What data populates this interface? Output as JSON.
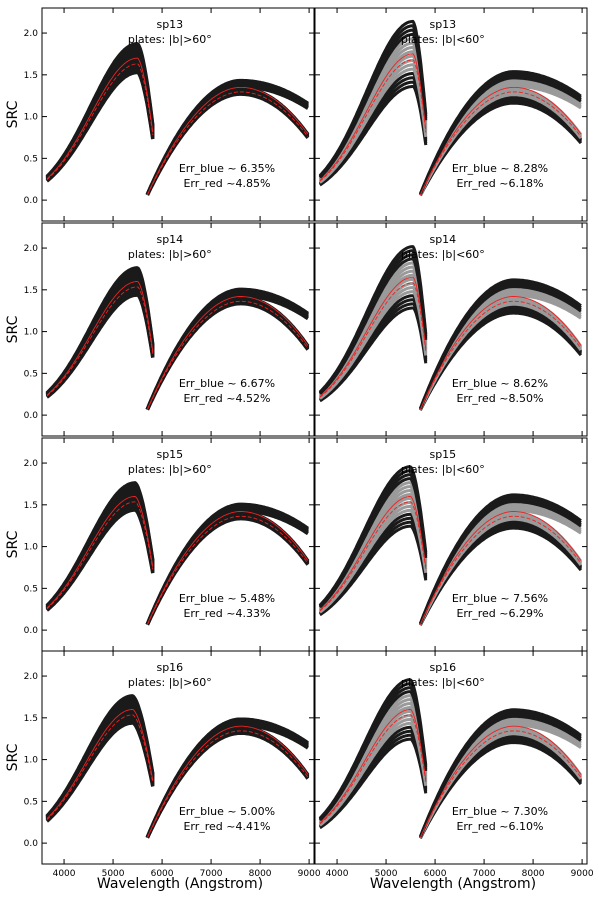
{
  "figure": {
    "ylabel": "SRC",
    "xlabel": "Wavelength (Angstrom)",
    "x_ticks": [
      "4000",
      "5000",
      "6000",
      "7000",
      "8000",
      "9000"
    ],
    "y_ticks": [
      "0.0",
      "0.5",
      "1.0",
      "1.5",
      "2.0"
    ]
  },
  "chart_data": [
    {
      "type": "line",
      "row": 0,
      "col": 0,
      "title": "sp13",
      "subtitle": "plates: |b|>60°",
      "err_blue": "Err_blue ~ 6.35%",
      "err_red": "Err_red ~4.85%",
      "xlim": [
        3550,
        9100
      ],
      "ylim": [
        -0.25,
        2.3
      ],
      "blue_peak": {
        "x": 5500,
        "y": 1.7
      },
      "red_peak": {
        "x": 7600,
        "y": 1.35
      },
      "spread": "narrow"
    },
    {
      "type": "line",
      "row": 0,
      "col": 1,
      "title": "sp13",
      "subtitle": "plates: |b|<60°",
      "err_blue": "Err_blue ~ 8.28%",
      "err_red": "Err_red ~6.18%",
      "xlim": [
        3550,
        9100
      ],
      "ylim": [
        -0.25,
        2.3
      ],
      "blue_peak": {
        "x": 5550,
        "y": 1.75
      },
      "red_peak": {
        "x": 7600,
        "y": 1.35
      },
      "spread": "wide"
    },
    {
      "type": "line",
      "row": 1,
      "col": 0,
      "title": "sp14",
      "subtitle": "plates: |b|>60°",
      "err_blue": "Err_blue ~ 6.67%",
      "err_red": "Err_red ~4.52%",
      "xlim": [
        3550,
        9100
      ],
      "ylim": [
        -0.25,
        2.3
      ],
      "blue_peak": {
        "x": 5500,
        "y": 1.6
      },
      "red_peak": {
        "x": 7600,
        "y": 1.42
      },
      "spread": "narrow"
    },
    {
      "type": "line",
      "row": 1,
      "col": 1,
      "title": "sp14",
      "subtitle": "plates: |b|<60°",
      "err_blue": "Err_blue ~ 8.62%",
      "err_red": "Err_red ~8.50%",
      "xlim": [
        3550,
        9100
      ],
      "ylim": [
        -0.25,
        2.3
      ],
      "blue_peak": {
        "x": 5550,
        "y": 1.65
      },
      "red_peak": {
        "x": 7600,
        "y": 1.42
      },
      "spread": "wide"
    },
    {
      "type": "line",
      "row": 2,
      "col": 0,
      "title": "sp15",
      "subtitle": "plates: |b|>60°",
      "err_blue": "Err_blue ~ 5.48%",
      "err_red": "Err_red ~4.33%",
      "xlim": [
        3550,
        9100
      ],
      "ylim": [
        -0.25,
        2.3
      ],
      "blue_peak": {
        "x": 5450,
        "y": 1.6
      },
      "red_peak": {
        "x": 7600,
        "y": 1.42
      },
      "spread": "narrow"
    },
    {
      "type": "line",
      "row": 2,
      "col": 1,
      "title": "sp15",
      "subtitle": "plates: |b|<60°",
      "err_blue": "Err_blue ~ 7.56%",
      "err_red": "Err_red ~6.29%",
      "xlim": [
        3550,
        9100
      ],
      "ylim": [
        -0.25,
        2.3
      ],
      "blue_peak": {
        "x": 5500,
        "y": 1.6
      },
      "red_peak": {
        "x": 7600,
        "y": 1.42
      },
      "spread": "wide"
    },
    {
      "type": "line",
      "row": 3,
      "col": 0,
      "title": "sp16",
      "subtitle": "plates: |b|>60°",
      "err_blue": "Err_blue ~ 5.00%",
      "err_red": "Err_red ~4.41%",
      "xlim": [
        3550,
        9100
      ],
      "ylim": [
        -0.25,
        2.3
      ],
      "blue_peak": {
        "x": 5400,
        "y": 1.6
      },
      "red_peak": {
        "x": 7600,
        "y": 1.4
      },
      "spread": "narrow"
    },
    {
      "type": "line",
      "row": 3,
      "col": 1,
      "title": "sp16",
      "subtitle": "plates: |b|<60°",
      "err_blue": "Err_blue ~ 7.30%",
      "err_red": "Err_red ~6.10%",
      "xlim": [
        3550,
        9100
      ],
      "ylim": [
        -0.25,
        2.3
      ],
      "blue_peak": {
        "x": 5500,
        "y": 1.6
      },
      "red_peak": {
        "x": 7600,
        "y": 1.4
      },
      "spread": "wide"
    }
  ],
  "colors": {
    "curves": "#1a1a1a",
    "fit": "#ee2222",
    "frame": "#000000",
    "inner": "#999999"
  }
}
